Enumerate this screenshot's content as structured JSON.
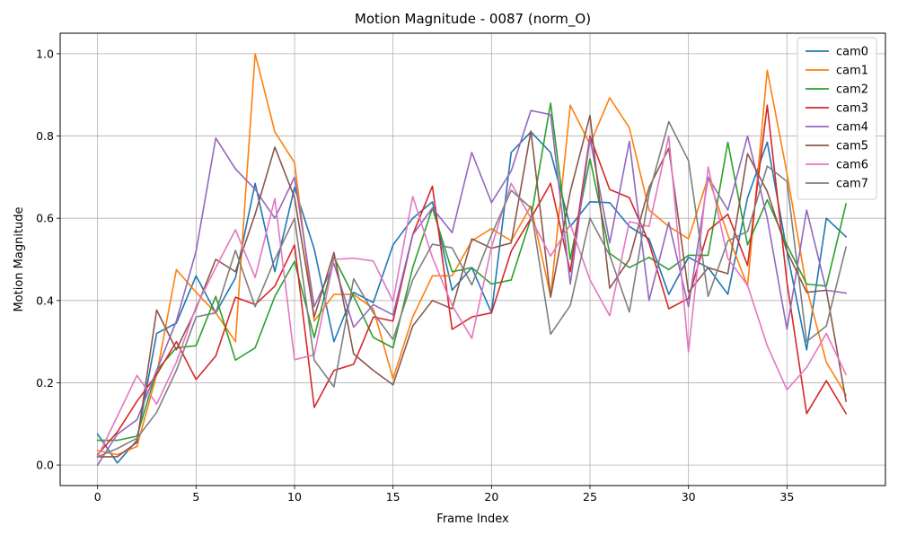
{
  "chart_data": {
    "type": "line",
    "title": "Motion Magnitude - 0087 (norm_O)",
    "xlabel": "Frame Index",
    "ylabel": "Motion Magnitude",
    "xlim": [
      -1.9,
      40
    ],
    "ylim": [
      -0.05,
      1.05
    ],
    "xticks": [
      0,
      5,
      10,
      15,
      20,
      25,
      30,
      35
    ],
    "yticks": [
      0.0,
      0.2,
      0.4,
      0.6,
      0.8,
      1.0
    ],
    "xtick_labels": [
      "0",
      "5",
      "10",
      "15",
      "20",
      "25",
      "30",
      "35"
    ],
    "ytick_labels": [
      "0.0",
      "0.2",
      "0.4",
      "0.6",
      "0.8",
      "1.0"
    ],
    "grid": true,
    "legend_position": "top-right",
    "x": [
      0,
      1,
      2,
      3,
      4,
      5,
      6,
      7,
      8,
      9,
      10,
      11,
      12,
      13,
      14,
      15,
      16,
      17,
      18,
      19,
      20,
      21,
      22,
      23,
      24,
      25,
      26,
      27,
      28,
      29,
      30,
      31,
      32,
      33,
      34,
      35,
      36,
      37,
      38
    ],
    "series": [
      {
        "name": "cam0",
        "color": "#1f77b4",
        "values": [
          0.075,
          0.005,
          0.06,
          0.32,
          0.345,
          0.46,
          0.37,
          0.455,
          0.685,
          0.47,
          0.675,
          0.525,
          0.3,
          0.42,
          0.395,
          0.535,
          0.6,
          0.64,
          0.425,
          0.48,
          0.37,
          0.76,
          0.81,
          0.76,
          0.58,
          0.64,
          0.638,
          0.58,
          0.55,
          0.415,
          0.505,
          0.48,
          0.415,
          0.65,
          0.785,
          0.52,
          0.28,
          0.6,
          0.555
        ]
      },
      {
        "name": "cam1",
        "color": "#ff7f0e",
        "values": [
          0.035,
          0.025,
          0.045,
          0.22,
          0.475,
          0.42,
          0.37,
          0.3,
          1.0,
          0.81,
          0.735,
          0.35,
          0.415,
          0.415,
          0.38,
          0.21,
          0.36,
          0.46,
          0.46,
          0.545,
          0.575,
          0.545,
          0.63,
          0.41,
          0.875,
          0.78,
          0.893,
          0.82,
          0.62,
          0.58,
          0.55,
          0.7,
          0.56,
          0.435,
          0.96,
          0.71,
          0.43,
          0.25,
          0.17
        ]
      },
      {
        "name": "cam2",
        "color": "#2ca02c",
        "values": [
          0.06,
          0.06,
          0.07,
          0.23,
          0.285,
          0.29,
          0.41,
          0.255,
          0.285,
          0.41,
          0.495,
          0.31,
          0.505,
          0.41,
          0.31,
          0.285,
          0.48,
          0.625,
          0.47,
          0.48,
          0.44,
          0.45,
          0.6,
          0.88,
          0.5,
          0.745,
          0.515,
          0.48,
          0.505,
          0.475,
          0.51,
          0.51,
          0.785,
          0.535,
          0.645,
          0.535,
          0.44,
          0.435,
          0.635
        ]
      },
      {
        "name": "cam3",
        "color": "#d62728",
        "values": [
          0.025,
          0.08,
          0.155,
          0.22,
          0.3,
          0.208,
          0.265,
          0.408,
          0.39,
          0.435,
          0.535,
          0.14,
          0.23,
          0.245,
          0.36,
          0.35,
          0.56,
          0.678,
          0.33,
          0.36,
          0.37,
          0.52,
          0.6,
          0.685,
          0.47,
          0.8,
          0.67,
          0.65,
          0.54,
          0.38,
          0.405,
          0.57,
          0.61,
          0.485,
          0.875,
          0.445,
          0.125,
          0.205,
          0.125
        ]
      },
      {
        "name": "cam4",
        "color": "#9467bd",
        "values": [
          0.0,
          0.075,
          0.11,
          0.23,
          0.35,
          0.52,
          0.795,
          0.72,
          0.67,
          0.6,
          0.7,
          0.385,
          0.49,
          0.335,
          0.39,
          0.365,
          0.56,
          0.625,
          0.565,
          0.76,
          0.638,
          0.715,
          0.862,
          0.852,
          0.44,
          0.795,
          0.54,
          0.787,
          0.4,
          0.59,
          0.385,
          0.7,
          0.62,
          0.8,
          0.6,
          0.33,
          0.62,
          0.425,
          0.418
        ]
      },
      {
        "name": "cam5",
        "color": "#8c564b",
        "values": [
          0.02,
          0.02,
          0.055,
          0.377,
          0.28,
          0.38,
          0.5,
          0.47,
          0.61,
          0.773,
          0.65,
          0.36,
          0.517,
          0.27,
          0.23,
          0.195,
          0.338,
          0.4,
          0.38,
          0.55,
          0.527,
          0.54,
          0.812,
          0.408,
          0.665,
          0.85,
          0.43,
          0.5,
          0.675,
          0.77,
          0.42,
          0.48,
          0.465,
          0.757,
          0.665,
          0.52,
          0.42,
          0.425,
          0.155
        ]
      },
      {
        "name": "cam6",
        "color": "#e377c2",
        "values": [
          0.02,
          0.118,
          0.218,
          0.148,
          0.25,
          0.385,
          0.48,
          0.572,
          0.456,
          0.648,
          0.256,
          0.268,
          0.5,
          0.503,
          0.496,
          0.398,
          0.653,
          0.505,
          0.388,
          0.308,
          0.53,
          0.685,
          0.6,
          0.508,
          0.585,
          0.45,
          0.363,
          0.592,
          0.58,
          0.8,
          0.275,
          0.725,
          0.502,
          0.437,
          0.29,
          0.183,
          0.237,
          0.32,
          0.22
        ]
      },
      {
        "name": "cam7",
        "color": "#7f7f7f",
        "values": [
          0.02,
          0.04,
          0.065,
          0.128,
          0.23,
          0.36,
          0.37,
          0.522,
          0.385,
          0.5,
          0.6,
          0.255,
          0.19,
          0.453,
          0.37,
          0.305,
          0.45,
          0.537,
          0.528,
          0.438,
          0.56,
          0.668,
          0.625,
          0.318,
          0.388,
          0.6,
          0.51,
          0.372,
          0.66,
          0.835,
          0.74,
          0.41,
          0.545,
          0.568,
          0.727,
          0.69,
          0.3,
          0.338,
          0.53
        ]
      }
    ]
  }
}
